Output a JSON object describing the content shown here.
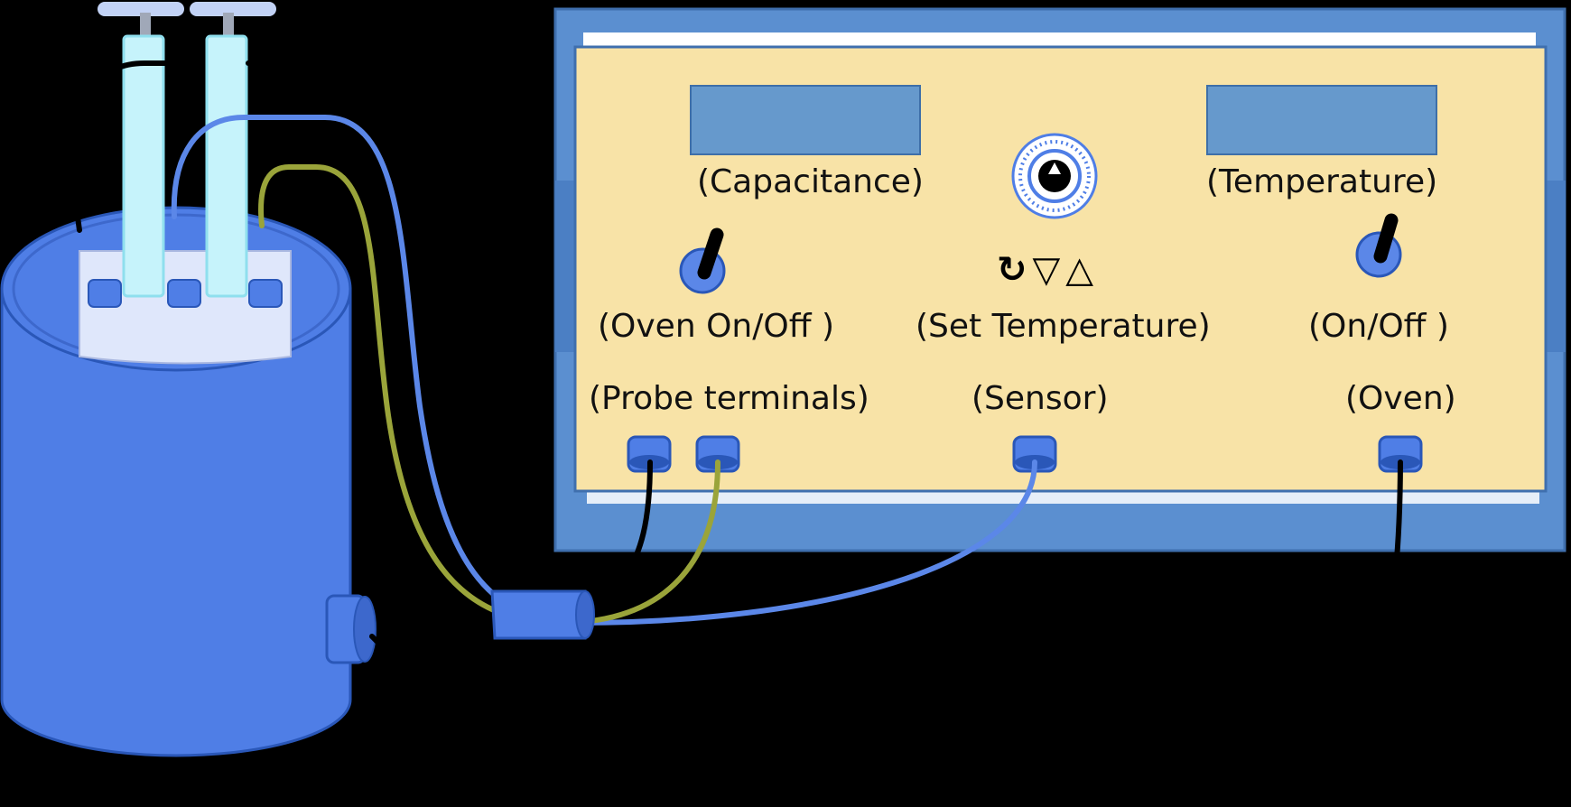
{
  "colors": {
    "background": "#000000",
    "panel_face": "#f8e3a7",
    "panel_frame": "#5b8fd0",
    "panel_frame_edge": "#3f6fae",
    "display": "#6699cc",
    "oven_body": "#4f7ee6",
    "oven_edge": "#2a57b8",
    "electrode": "#c6f3fb",
    "wire_black": "#000000",
    "wire_blue": "#5b87e8",
    "wire_olive": "#9aa43a"
  },
  "panel": {
    "capacitance_label": "(Capacitance)",
    "temperature_label": "(Temperature)",
    "oven_switch_label": "(Oven On/Off )",
    "set_temperature_label": "(Set Temperature)",
    "power_switch_label": "(On/Off )",
    "probe_terminals_label": "(Probe terminals)",
    "sensor_label": "(Sensor)",
    "oven_label": "(Oven)"
  },
  "icons": {
    "set_temperature_controls": [
      "rotate-icon",
      "down-triangle-icon",
      "up-triangle-icon"
    ],
    "control_glyphs": "↻▽△",
    "knob": "dial-knob-icon"
  }
}
